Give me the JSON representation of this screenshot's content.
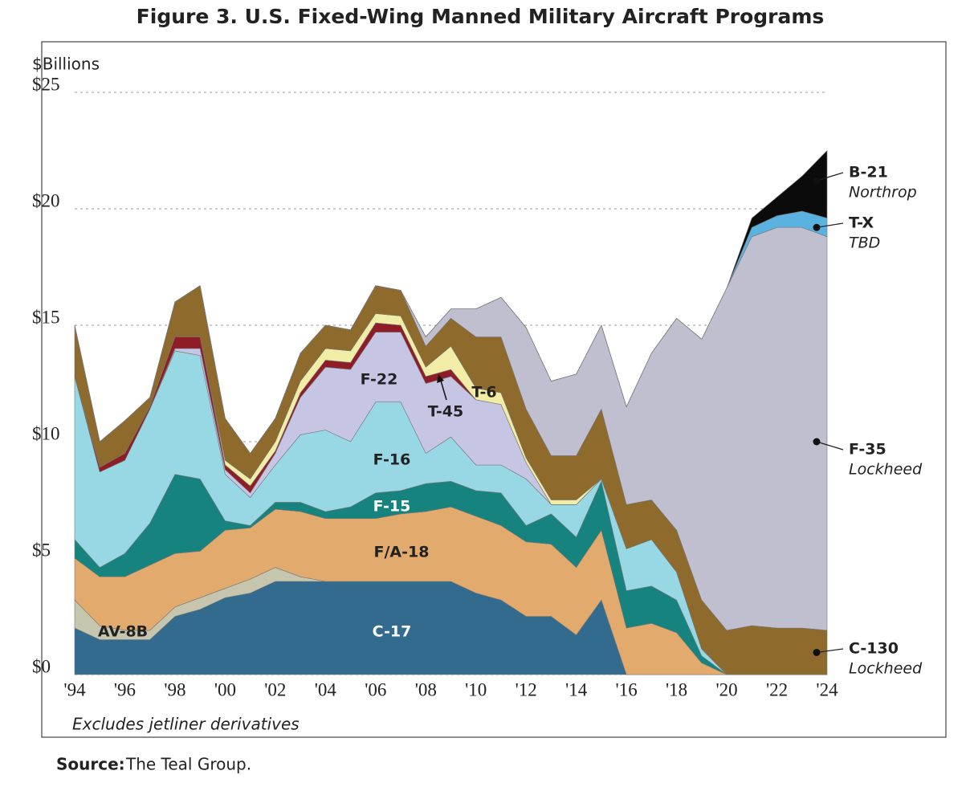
{
  "chart_data": {
    "type": "stacked-area",
    "title": "Figure 3. U.S. Fixed-Wing Manned Military Aircraft Programs",
    "y_label": "$Billions",
    "note": "Excludes jetliner derivatives",
    "source": {
      "label": "Source:",
      "text": "The Teal Group."
    },
    "x": [
      1994,
      1995,
      1996,
      1997,
      1998,
      1999,
      2000,
      2001,
      2002,
      2003,
      2004,
      2005,
      2006,
      2007,
      2008,
      2009,
      2010,
      2011,
      2012,
      2013,
      2014,
      2015,
      2016,
      2017,
      2018,
      2019,
      2020,
      2021,
      2022,
      2023,
      2024
    ],
    "xlim": [
      1994,
      2024
    ],
    "xticks": [
      {
        "value": 1994,
        "label": "'94"
      },
      {
        "value": 1996,
        "label": "'96"
      },
      {
        "value": 1998,
        "label": "'98"
      },
      {
        "value": 2000,
        "label": "'00"
      },
      {
        "value": 2002,
        "label": "'02"
      },
      {
        "value": 2004,
        "label": "'04"
      },
      {
        "value": 2006,
        "label": "'06"
      },
      {
        "value": 2008,
        "label": "'08"
      },
      {
        "value": 2010,
        "label": "'10"
      },
      {
        "value": 2012,
        "label": "'12"
      },
      {
        "value": 2014,
        "label": "'14"
      },
      {
        "value": 2016,
        "label": "'16"
      },
      {
        "value": 2018,
        "label": "'18"
      },
      {
        "value": 2020,
        "label": "'20"
      },
      {
        "value": 2022,
        "label": "'22"
      },
      {
        "value": 2024,
        "label": "'24"
      }
    ],
    "ylim": [
      0,
      25
    ],
    "yticks": [
      {
        "value": 0,
        "label": "$0"
      },
      {
        "value": 5,
        "label": "$5"
      },
      {
        "value": 10,
        "label": "$10"
      },
      {
        "value": 15,
        "label": "$15"
      },
      {
        "value": 20,
        "label": "$20"
      },
      {
        "value": 25,
        "label": "$25"
      }
    ],
    "grid": true,
    "series": [
      {
        "name": "C-17",
        "color": "#336b8f",
        "values": [
          2.0,
          1.5,
          1.5,
          1.5,
          2.5,
          2.8,
          3.3,
          3.5,
          4.0,
          4.0,
          4.0,
          4.0,
          4.0,
          4.0,
          4.0,
          4.0,
          3.5,
          3.2,
          2.5,
          2.5,
          1.7,
          3.2,
          0,
          0,
          0,
          0,
          0,
          0,
          0,
          0,
          0
        ]
      },
      {
        "name": "AV-8B",
        "color": "#c6c6ae",
        "values": [
          1.2,
          0.6,
          0.4,
          0.4,
          0.4,
          0.5,
          0.4,
          0.6,
          0.6,
          0.2,
          0,
          0,
          0,
          0,
          0,
          0,
          0,
          0,
          0,
          0,
          0,
          0,
          0,
          0,
          0,
          0,
          0,
          0,
          0,
          0,
          0
        ]
      },
      {
        "name": "F/A-18",
        "color": "#e2aa6c",
        "values": [
          1.8,
          2.1,
          2.3,
          2.8,
          2.3,
          2.0,
          2.5,
          2.2,
          2.5,
          2.8,
          2.7,
          2.7,
          2.7,
          2.9,
          3.0,
          3.2,
          3.3,
          3.2,
          3.2,
          3.1,
          2.9,
          3.0,
          2.0,
          2.2,
          1.8,
          0.5,
          0,
          0,
          0,
          0,
          0
        ]
      },
      {
        "name": "F-15",
        "color": "#16837e",
        "values": [
          0.8,
          0.4,
          1.0,
          1.8,
          3.4,
          3.1,
          0.4,
          0.1,
          0.3,
          0.4,
          0.3,
          0.5,
          1.1,
          1.0,
          1.2,
          1.1,
          1.1,
          1.4,
          0.7,
          1.3,
          1.3,
          2.1,
          1.6,
          1.6,
          1.4,
          0.3,
          0,
          0,
          0,
          0,
          0
        ]
      },
      {
        "name": "F-16",
        "color": "#98d7e4",
        "values": [
          7.0,
          4.1,
          4.0,
          4.9,
          5.3,
          5.3,
          2.0,
          1.2,
          1.6,
          2.9,
          3.5,
          2.8,
          3.9,
          3.8,
          1.3,
          1.9,
          1.1,
          1.2,
          2.0,
          0.4,
          1.4,
          0.1,
          1.8,
          2.0,
          1.2,
          0.3,
          0,
          0,
          0,
          0,
          0
        ]
      },
      {
        "name": "F-22",
        "color": "#c6c6e4",
        "values": [
          0,
          0,
          0,
          0,
          0.1,
          0.3,
          0.2,
          0.2,
          0.5,
          1.6,
          2.7,
          3.1,
          3.0,
          3.0,
          3.0,
          2.6,
          2.8,
          2.6,
          0.7,
          0,
          0,
          0,
          0,
          0,
          0,
          0,
          0,
          0,
          0,
          0,
          0
        ]
      },
      {
        "name": "T-45",
        "color": "#8f1d27",
        "values": [
          0,
          0.2,
          0.3,
          0.1,
          0.5,
          0.5,
          0.2,
          0.3,
          0.1,
          0.2,
          0.3,
          0.3,
          0.4,
          0.3,
          0.3,
          0.3,
          0,
          0,
          0,
          0,
          0,
          0,
          0,
          0,
          0,
          0,
          0,
          0,
          0,
          0,
          0
        ]
      },
      {
        "name": "T-6",
        "color": "#f2eda6",
        "values": [
          0,
          0,
          0,
          0,
          0,
          0,
          0.2,
          0.3,
          0.4,
          0.5,
          0.5,
          0.5,
          0.4,
          0.4,
          0.4,
          1.0,
          0.5,
          0.5,
          0.2,
          0.2,
          0.2,
          0,
          0,
          0,
          0,
          0,
          0,
          0,
          0,
          0,
          0
        ]
      },
      {
        "name": "C-130",
        "maker": "Lockheed",
        "color": "#8e6a2c",
        "values": [
          2.2,
          1.1,
          1.4,
          0.4,
          1.5,
          2.2,
          1.8,
          1.1,
          1.0,
          1.2,
          1.0,
          0.9,
          1.2,
          1.1,
          0.9,
          1.2,
          2.2,
          2.4,
          2.1,
          1.9,
          1.9,
          3.0,
          1.9,
          1.7,
          1.8,
          2.1,
          1.9,
          2.1,
          2.0,
          2.0,
          1.9
        ]
      },
      {
        "name": "F-35",
        "maker": "Lockheed",
        "color": "#bfbfcf",
        "values": [
          0,
          0,
          0,
          0,
          0,
          0,
          0,
          0,
          0,
          0,
          0,
          0,
          0,
          0,
          0.4,
          0.4,
          1.2,
          1.7,
          3.5,
          3.2,
          3.5,
          3.6,
          4.2,
          6.3,
          9.1,
          11.2,
          14.7,
          16.7,
          17.2,
          17.2,
          16.9
        ]
      },
      {
        "name": "T-X",
        "maker": "TBD",
        "color": "#5ab2e0",
        "values": [
          0,
          0,
          0,
          0,
          0,
          0,
          0,
          0,
          0,
          0,
          0,
          0,
          0,
          0,
          0,
          0,
          0,
          0,
          0,
          0,
          0,
          0,
          0,
          0,
          0,
          0,
          0,
          0.4,
          0.5,
          0.7,
          0.8
        ]
      },
      {
        "name": "B-21",
        "maker": "Northrop",
        "color": "#0b0b0b",
        "values": [
          0,
          0,
          0,
          0,
          0,
          0,
          0,
          0,
          0,
          0,
          0,
          0,
          0,
          0,
          0,
          0,
          0,
          0,
          0,
          0,
          0,
          0,
          0,
          0,
          0,
          0,
          0,
          0.4,
          0.8,
          1.5,
          2.9
        ]
      }
    ]
  }
}
